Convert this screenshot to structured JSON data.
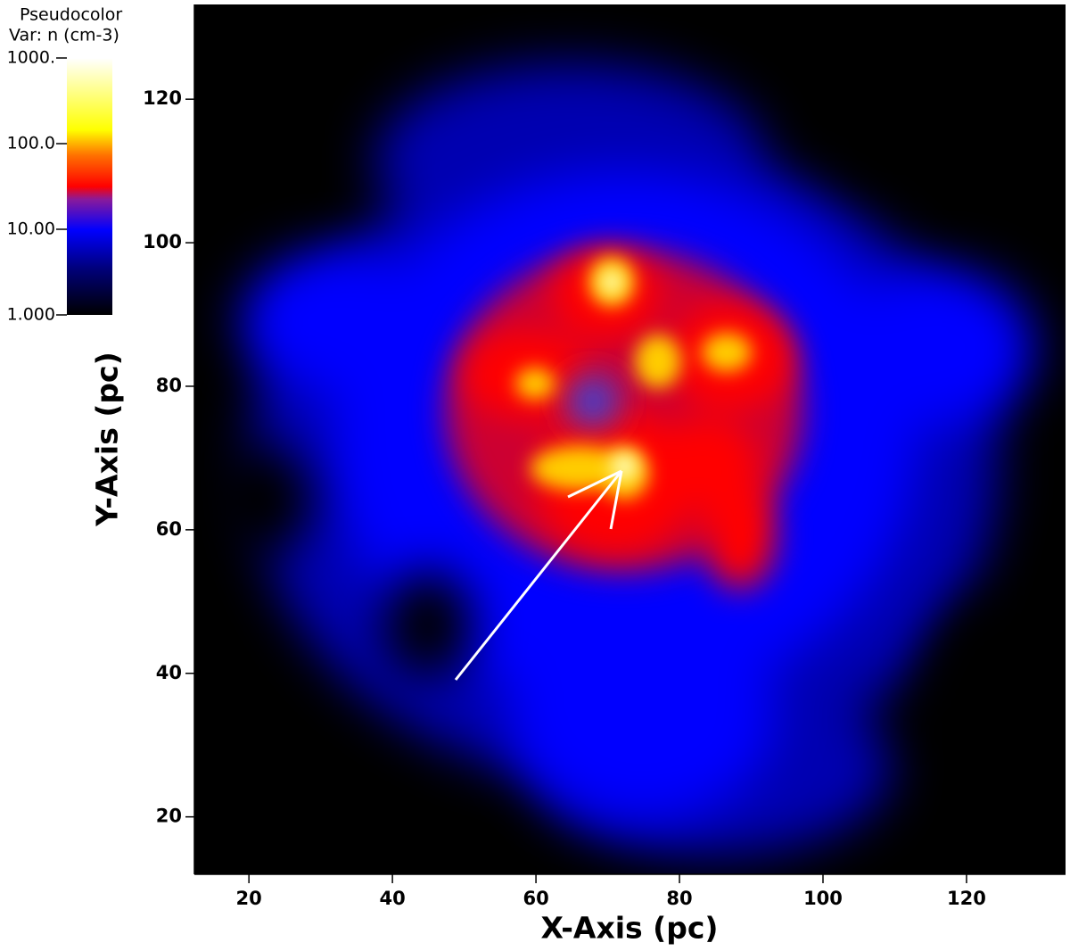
{
  "chart_data": {
    "type": "pseudocolor",
    "colorbar_title": "Pseudocolor",
    "colorbar_variable": "Var: n (cm-3)",
    "colorbar_lim": [
      1,
      1000
    ],
    "colorbar_log": true,
    "colorbar_ticks": [
      {
        "value": 1,
        "label": "1.000"
      },
      {
        "value": 10,
        "label": "10.00"
      },
      {
        "value": 100,
        "label": "100.0"
      },
      {
        "value": 1000,
        "label": "1000."
      }
    ],
    "xlabel": "X-Axis (pc)",
    "ylabel": "Y-Axis (pc)",
    "xlim": [
      12.4,
      133.8
    ],
    "ylim": [
      12,
      133.2
    ],
    "xticks": [
      20,
      40,
      60,
      80,
      100,
      120
    ],
    "yticks": [
      20,
      40,
      60,
      80,
      100,
      120
    ]
  }
}
